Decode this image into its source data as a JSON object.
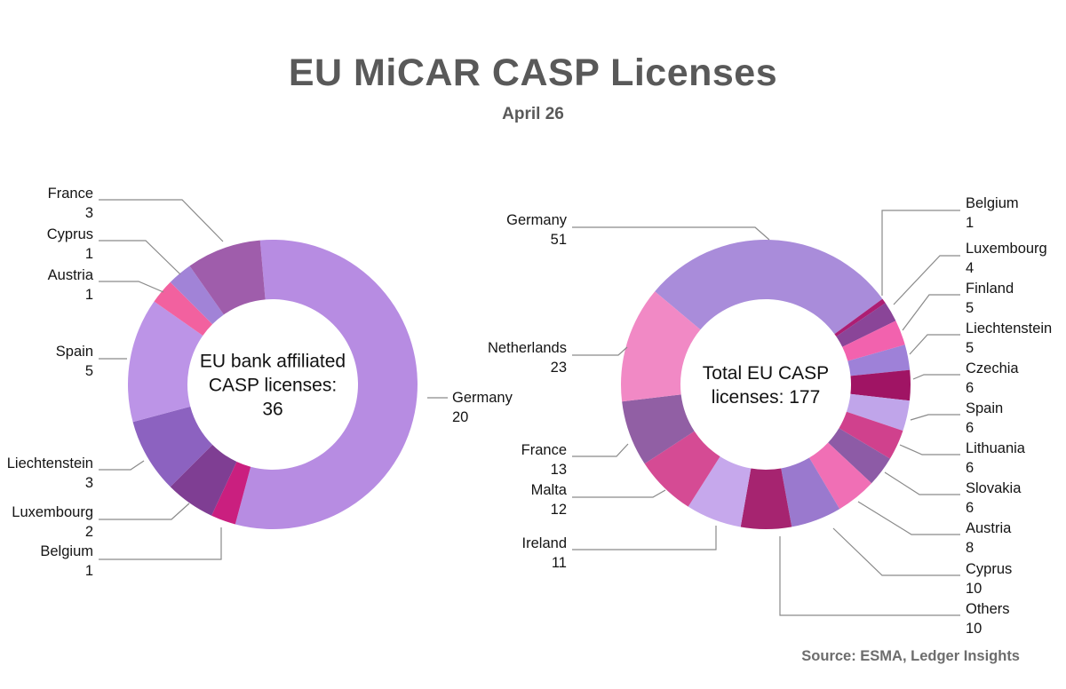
{
  "title": "EU MiCAR CASP Licenses",
  "subtitle": "April 26",
  "source": "Source: ESMA, Ledger Insights",
  "chart_data": [
    {
      "type": "pie",
      "title": "EU bank affiliated CASP licenses: 36",
      "center_label": "EU bank affiliated\nCASP licenses:\n36",
      "total": 36,
      "legend_position": "outside-callouts",
      "segments": [
        {
          "label": "Germany",
          "value": 20,
          "color": "#b78ce2"
        },
        {
          "label": "Belgium",
          "value": 1,
          "color": "#ca1f7f"
        },
        {
          "label": "Luxembourg",
          "value": 2,
          "color": "#7f3e93"
        },
        {
          "label": "Liechtenstein",
          "value": 3,
          "color": "#8c62c0"
        },
        {
          "label": "Spain",
          "value": 5,
          "color": "#bc94e7"
        },
        {
          "label": "Austria",
          "value": 1,
          "color": "#f2619f"
        },
        {
          "label": "Cyprus",
          "value": 1,
          "color": "#a183d7"
        },
        {
          "label": "France",
          "value": 3,
          "color": "#9f5dab"
        }
      ]
    },
    {
      "type": "pie",
      "title": "Total EU CASP licenses: 177",
      "center_label": "Total EU CASP\nlicenses: 177",
      "total": 177,
      "legend_position": "outside-callouts",
      "segments": [
        {
          "label": "Germany",
          "value": 51,
          "color": "#a98cda"
        },
        {
          "label": "Belgium",
          "value": 1,
          "color": "#ad1e73"
        },
        {
          "label": "Luxembourg",
          "value": 4,
          "color": "#8a4598"
        },
        {
          "label": "Finland",
          "value": 5,
          "color": "#f262ae"
        },
        {
          "label": "Liechtenstein",
          "value": 5,
          "color": "#9e81d8"
        },
        {
          "label": "Czechia",
          "value": 6,
          "color": "#a01464"
        },
        {
          "label": "Spain",
          "value": 6,
          "color": "#c0a5ea"
        },
        {
          "label": "Lithuania",
          "value": 6,
          "color": "#d0418d"
        },
        {
          "label": "Slovakia",
          "value": 6,
          "color": "#8d5ba6"
        },
        {
          "label": "Austria",
          "value": 8,
          "color": "#f06fb5"
        },
        {
          "label": "Cyprus",
          "value": 10,
          "color": "#9a79ce"
        },
        {
          "label": "Others",
          "value": 10,
          "color": "#a62470"
        },
        {
          "label": "Ireland",
          "value": 11,
          "color": "#c6a8ec"
        },
        {
          "label": "Malta",
          "value": 12,
          "color": "#d54b94"
        },
        {
          "label": "France",
          "value": 13,
          "color": "#915fa4"
        },
        {
          "label": "Netherlands",
          "value": 23,
          "color": "#f189c5"
        }
      ]
    }
  ]
}
